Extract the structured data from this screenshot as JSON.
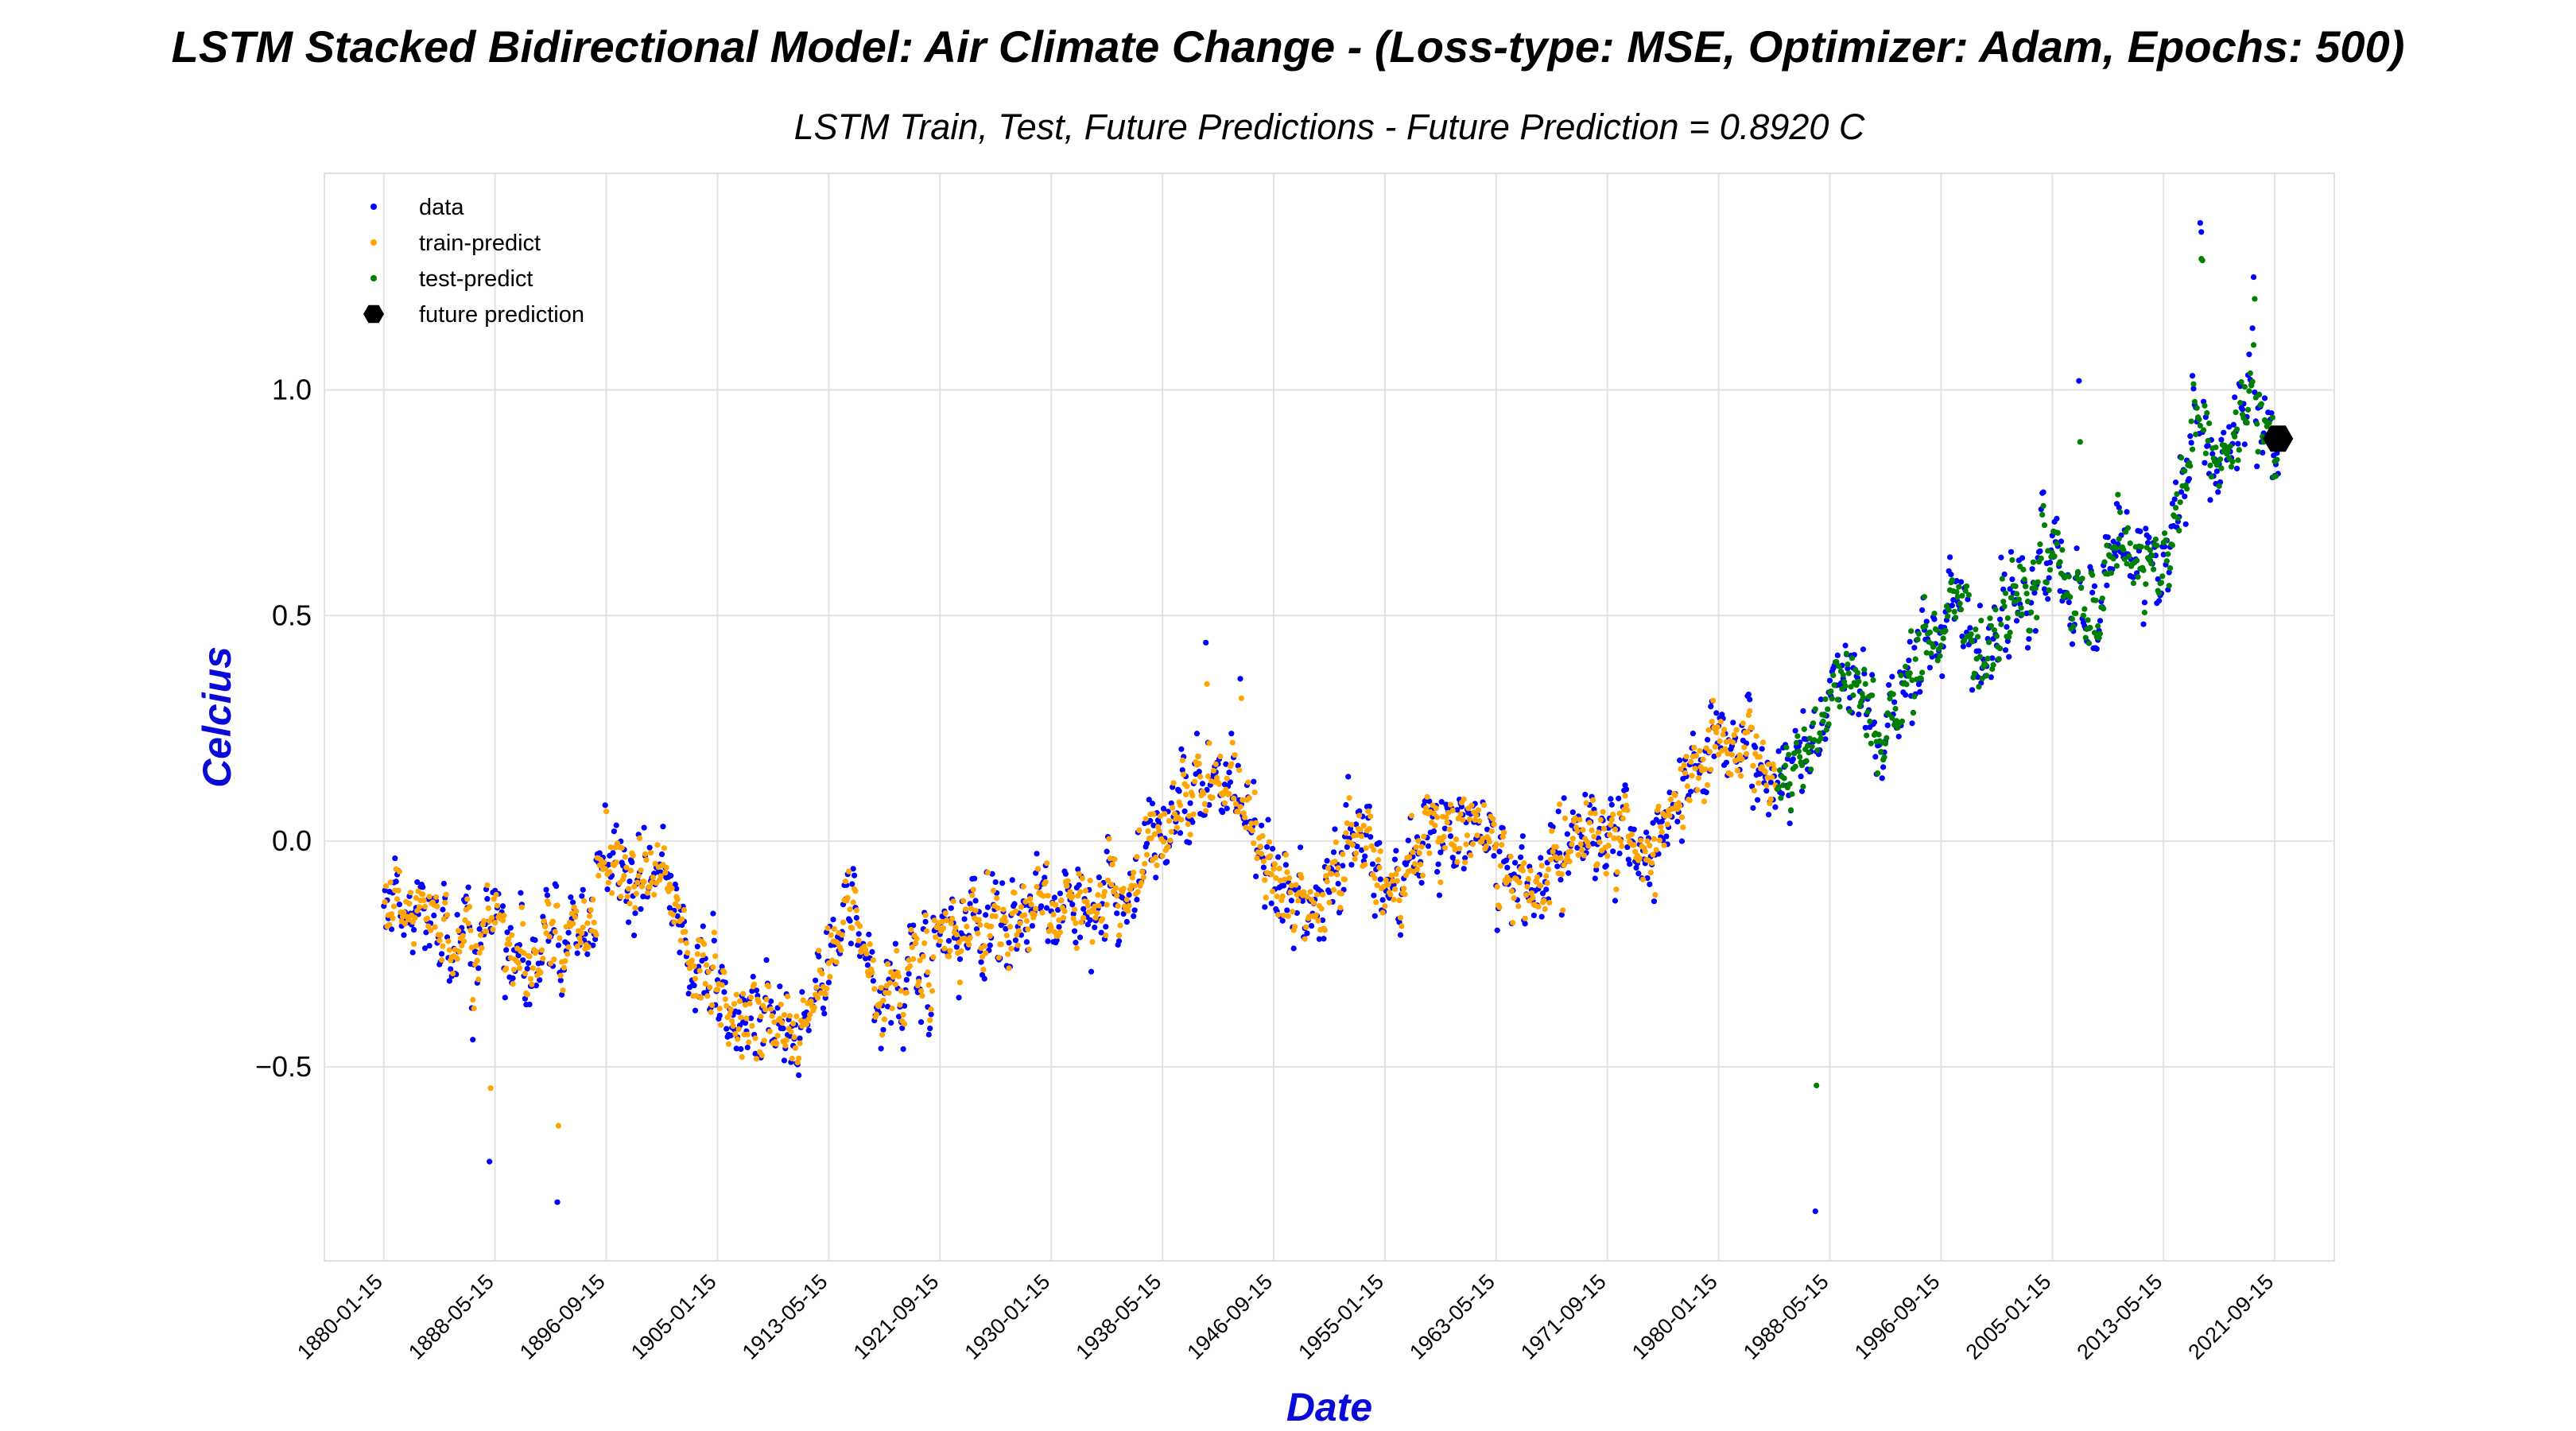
{
  "chart_data": {
    "type": "scatter",
    "title": "LSTM Stacked Bidirectional Model: Air Climate Change - (Loss-type: MSE, Optimizer: Adam, Epochs: 500)",
    "subtitle": "LSTM Train, Test, Future Predictions - Future Prediction = 0.8920 C",
    "xlabel": "Date",
    "ylabel": "Celcius",
    "label_color": "#0a0ad8",
    "x_range": [
      "1875-08-01",
      "2026-03-01"
    ],
    "ylim": [
      -0.93,
      1.48
    ],
    "yticks": [
      -0.5,
      0.0,
      0.5,
      1.0
    ],
    "ytick_labels": [
      "−0.5",
      "0.0",
      "0.5",
      "1.0"
    ],
    "xticks": [
      "1880-01-15",
      "1888-05-15",
      "1896-09-15",
      "1905-01-15",
      "1913-05-15",
      "1921-09-15",
      "1930-01-15",
      "1938-05-15",
      "1946-09-15",
      "1955-01-15",
      "1963-05-15",
      "1971-09-15",
      "1980-01-15",
      "1988-05-15",
      "1996-09-15",
      "2005-01-15",
      "2013-05-15",
      "2021-09-15"
    ],
    "grid": true,
    "legend_position": "top-left",
    "train_end": "1984-06-15",
    "future_date": "2021-12-15",
    "future_value": 0.892,
    "trend_anchors": [
      [
        1880.0,
        -0.16
      ],
      [
        1883.0,
        -0.12
      ],
      [
        1886.0,
        -0.27
      ],
      [
        1888.5,
        -0.14
      ],
      [
        1890.0,
        -0.28
      ],
      [
        1892.0,
        -0.22
      ],
      [
        1895.0,
        -0.18
      ],
      [
        1897.0,
        -0.07
      ],
      [
        1900.0,
        -0.05
      ],
      [
        1904.0,
        -0.3
      ],
      [
        1907.0,
        -0.4
      ],
      [
        1909.0,
        -0.43
      ],
      [
        1911.0,
        -0.42
      ],
      [
        1913.0,
        -0.33
      ],
      [
        1915.0,
        -0.12
      ],
      [
        1917.0,
        -0.37
      ],
      [
        1920.0,
        -0.25
      ],
      [
        1925.0,
        -0.2
      ],
      [
        1930.0,
        -0.14
      ],
      [
        1935.0,
        -0.12
      ],
      [
        1938.0,
        0.0
      ],
      [
        1941.0,
        0.16
      ],
      [
        1944.0,
        0.12
      ],
      [
        1946.0,
        -0.04
      ],
      [
        1950.0,
        -0.16
      ],
      [
        1953.0,
        0.02
      ],
      [
        1956.0,
        -0.15
      ],
      [
        1958.0,
        0.05
      ],
      [
        1962.0,
        0.03
      ],
      [
        1965.0,
        -0.12
      ],
      [
        1970.0,
        0.0
      ],
      [
        1975.0,
        -0.02
      ],
      [
        1977.0,
        0.12
      ],
      [
        1980.0,
        0.2
      ],
      [
        1983.0,
        0.22
      ],
      [
        1985.0,
        0.12
      ],
      [
        1988.0,
        0.3
      ],
      [
        1990.0,
        0.38
      ],
      [
        1992.0,
        0.2
      ],
      [
        1995.0,
        0.4
      ],
      [
        1998.0,
        0.55
      ],
      [
        2000.0,
        0.4
      ],
      [
        2002.0,
        0.55
      ],
      [
        2005.0,
        0.62
      ],
      [
        2008.0,
        0.52
      ],
      [
        2010.0,
        0.68
      ],
      [
        2012.0,
        0.58
      ],
      [
        2014.0,
        0.68
      ],
      [
        2016.0,
        0.98
      ],
      [
        2018.0,
        0.82
      ],
      [
        2020.0,
        1.0
      ],
      [
        2021.9,
        0.85
      ]
    ],
    "highlights": [
      {
        "date": "2016-02-15",
        "value": 1.37
      },
      {
        "date": "2016-03-15",
        "value": 1.35
      },
      {
        "date": "2020-02-15",
        "value": 1.25
      },
      {
        "date": "2007-01-15",
        "value": 1.02
      },
      {
        "date": "1987-04-15",
        "value": -0.82
      },
      {
        "date": "1893-01-15",
        "value": -0.8
      },
      {
        "date": "1887-12-15",
        "value": -0.71
      },
      {
        "date": "1941-08-15",
        "value": 0.44
      },
      {
        "date": "1944-03-15",
        "value": 0.36
      }
    ],
    "series": [
      {
        "name": "data",
        "color": "#0000ff",
        "marker": "dot"
      },
      {
        "name": "train-predict",
        "color": "#ffa500",
        "marker": "dot"
      },
      {
        "name": "test-predict",
        "color": "#008000",
        "marker": "dot"
      },
      {
        "name": "future prediction",
        "color": "#000000",
        "marker": "hexagon"
      }
    ]
  }
}
